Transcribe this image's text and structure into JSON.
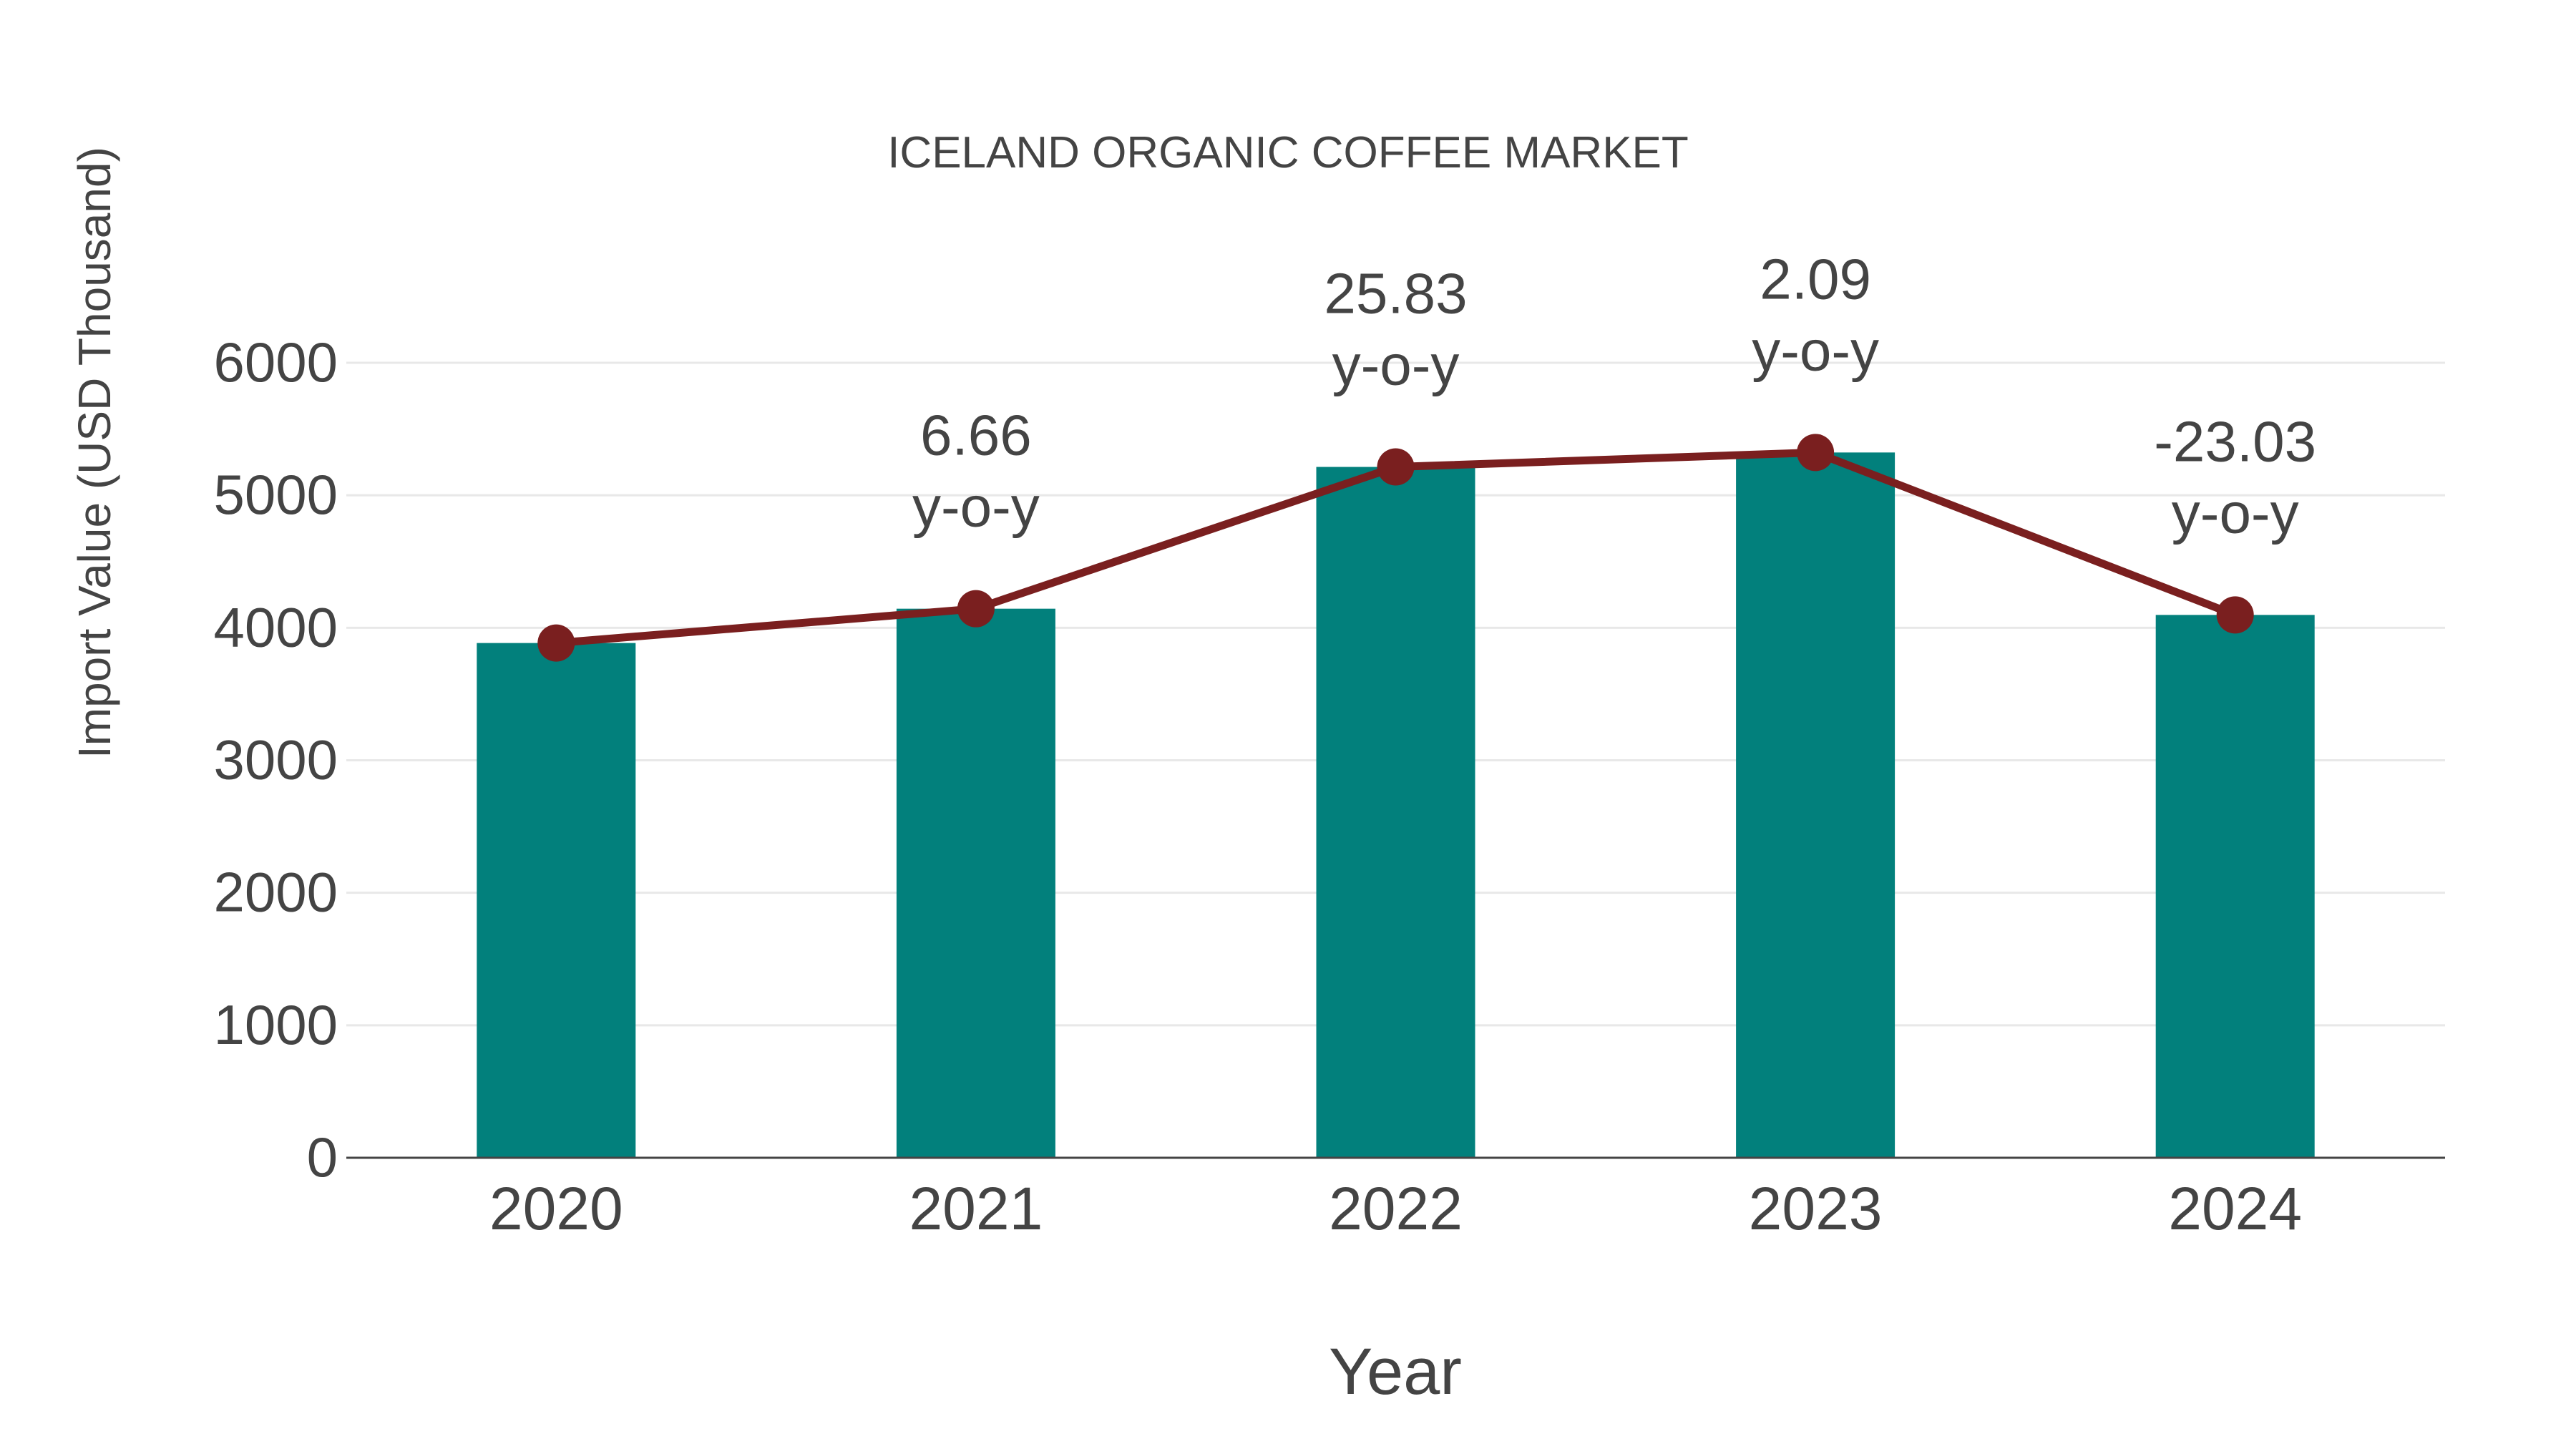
{
  "title": "ICELAND ORGANIC COFFEE MARKET",
  "x_axis_title": "Year",
  "y_axis_title": "Import Value (USD Thousand)",
  "y_ticks": [
    "0",
    "1000",
    "2000",
    "3000",
    "4000",
    "5000",
    "6000"
  ],
  "annotation_suffix": "y-o-y",
  "colors": {
    "bar": "#02807c",
    "line": "#7a1f1f",
    "grid": "#e8e8e8",
    "axis": "#444444",
    "text": "#444444"
  },
  "chart_data": {
    "type": "bar",
    "title": "ICELAND ORGANIC COFFEE MARKET",
    "xlabel": "Year",
    "ylabel": "Import Value (USD Thousand)",
    "categories": [
      "2020",
      "2021",
      "2022",
      "2023",
      "2024"
    ],
    "series": [
      {
        "name": "Import Value",
        "type": "bar",
        "values": [
          3885,
          4144,
          5214,
          5323,
          4097
        ]
      },
      {
        "name": "Import Value (trend)",
        "type": "line",
        "values": [
          3885,
          4144,
          5214,
          5323,
          4097
        ]
      }
    ],
    "annotations": [
      {
        "x": "2021",
        "text": "6.66 y-o-y",
        "value": 6.66
      },
      {
        "x": "2022",
        "text": "25.83 y-o-y",
        "value": 25.83
      },
      {
        "x": "2023",
        "text": "2.09 y-o-y",
        "value": 2.09
      },
      {
        "x": "2024",
        "text": "-23.03 y-o-y",
        "value": -23.03
      }
    ],
    "ylim": [
      0,
      6000
    ],
    "yticks": [
      0,
      1000,
      2000,
      3000,
      4000,
      5000,
      6000
    ],
    "grid": true,
    "legend": "none"
  }
}
